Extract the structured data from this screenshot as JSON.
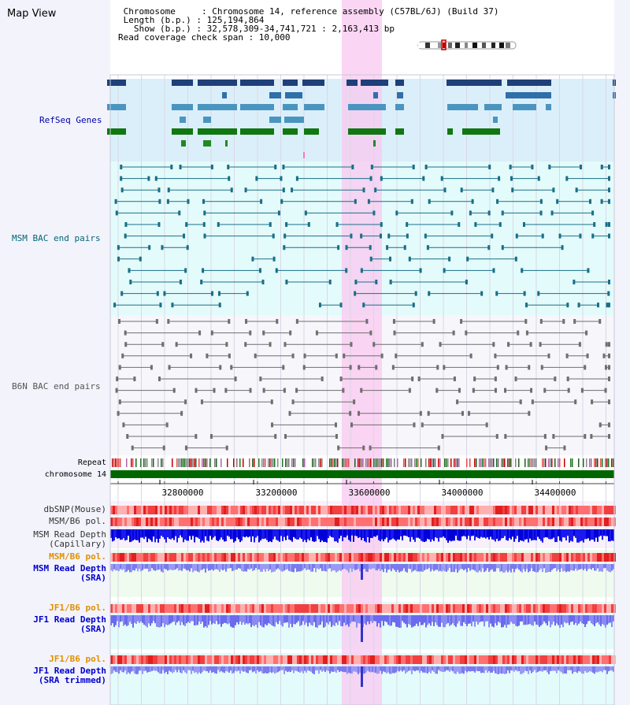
{
  "view": {
    "title": "Map View",
    "info_lines": [
      " Chromosome     : Chromosome 14, reference assembly (C57BL/6J) (Build 37)",
      " Length (b.p.) : 125,194,864",
      "   Show (b.p.) : 32,578,309-34,741,721 : 2,163,413 bp",
      "Read coverage check span : 10,000"
    ]
  },
  "tracks": {
    "refseq": {
      "label": "RefSeq Genes"
    },
    "msm_bac": {
      "label": "MSM BAC end pairs"
    },
    "b6n_bac": {
      "label": "B6N BAC end pairs"
    },
    "repeat": {
      "label": "Repeat"
    },
    "chromosome": {
      "label": "chromosome 14"
    },
    "dbsnp": {
      "label": "dbSNP(Mouse)"
    },
    "msm_b6_pol": {
      "label": "MSM/B6 pol."
    },
    "msm_depth_cap": {
      "line1": "MSM Read Depth",
      "line2": "(Capillary)"
    },
    "msm_b6_pol_sra": {
      "label": "MSM/B6 pol."
    },
    "msm_depth_sra": {
      "line1": "MSM Read Depth",
      "line2": "(SRA)"
    },
    "jf1_b6_pol": {
      "label": "JF1/B6 pol."
    },
    "jf1_depth_sra": {
      "line1": "JF1 Read Depth",
      "line2": "(SRA)"
    },
    "jf1_b6_pol_trim": {
      "label": "JF1/B6 pol."
    },
    "jf1_depth_trim": {
      "line1": "JF1 Read Depth",
      "line2": "(SRA trimmed)"
    }
  },
  "axis": {
    "ticks": [
      "32800000",
      "33200000",
      "33600000",
      "34000000",
      "34400000"
    ]
  },
  "colors": {
    "refseq_label": "#0000aa",
    "msm_label": "#006677",
    "b6n_label": "#555555",
    "pol_orange_label": "#e09000",
    "depth_blue_label": "#0000cc",
    "highlight": "#f9c8f0",
    "chromosome_bar": "#006600",
    "refseq_bg": "#dbeffa",
    "msm_bg": "#e4fbfb"
  }
}
